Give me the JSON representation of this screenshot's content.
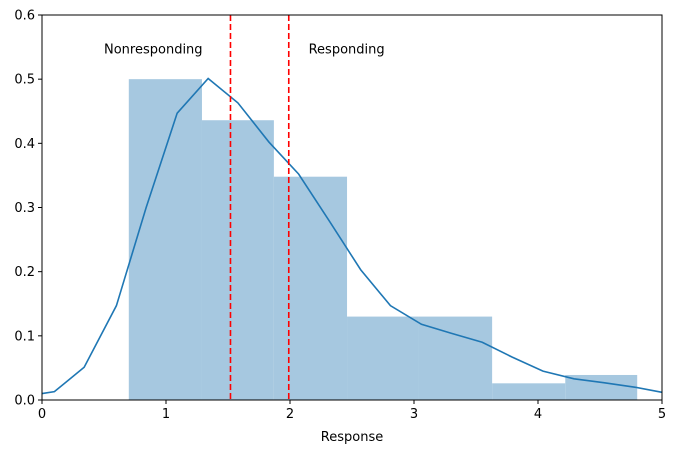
{
  "chart_data": {
    "type": "bar",
    "title": "",
    "xlabel": "Response",
    "ylabel": "",
    "xlim": [
      0,
      5
    ],
    "ylim": [
      0,
      0.6
    ],
    "xticks": [
      "0",
      "1",
      "2",
      "3",
      "4",
      "5"
    ],
    "yticks": [
      "0.0",
      "0.1",
      "0.2",
      "0.3",
      "0.4",
      "0.5",
      "0.6"
    ],
    "grid": false,
    "histogram": {
      "color": "#a6c8e0",
      "bins": [
        {
          "x0": 0.7,
          "x1": 1.29,
          "value": 0.5
        },
        {
          "x0": 1.29,
          "x1": 1.87,
          "value": 0.436
        },
        {
          "x0": 1.87,
          "x1": 2.46,
          "value": 0.348
        },
        {
          "x0": 2.46,
          "x1": 3.04,
          "value": 0.13
        },
        {
          "x0": 3.04,
          "x1": 3.63,
          "value": 0.13
        },
        {
          "x0": 3.63,
          "x1": 4.22,
          "value": 0.026
        },
        {
          "x0": 4.22,
          "x1": 4.8,
          "value": 0.039
        }
      ]
    },
    "density_line": {
      "color": "#1f77b4",
      "points": [
        [
          0,
          0.01
        ],
        [
          0.1,
          0.013
        ],
        [
          0.34,
          0.051
        ],
        [
          0.6,
          0.147
        ],
        [
          0.84,
          0.3
        ],
        [
          1.09,
          0.447
        ],
        [
          1.34,
          0.501
        ],
        [
          1.58,
          0.463
        ],
        [
          1.83,
          0.402
        ],
        [
          2.07,
          0.352
        ],
        [
          2.32,
          0.278
        ],
        [
          2.57,
          0.203
        ],
        [
          2.81,
          0.147
        ],
        [
          3.06,
          0.118
        ],
        [
          3.3,
          0.104
        ],
        [
          3.55,
          0.09
        ],
        [
          3.79,
          0.067
        ],
        [
          4.04,
          0.045
        ],
        [
          4.29,
          0.033
        ],
        [
          4.53,
          0.027
        ],
        [
          4.78,
          0.02
        ],
        [
          5,
          0.012
        ]
      ]
    },
    "thresholds": {
      "color": "#ff0000",
      "values": [
        1.52,
        1.99
      ]
    },
    "annotations": [
      {
        "text": "Nonresponding",
        "x": 0.5,
        "y": 0.54
      },
      {
        "text": "Responding",
        "x": 2.15,
        "y": 0.54
      }
    ]
  }
}
